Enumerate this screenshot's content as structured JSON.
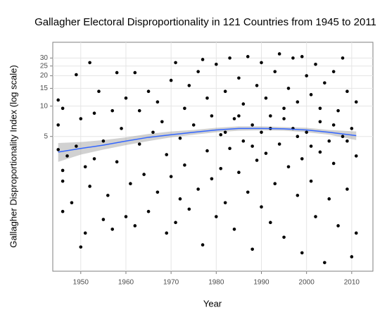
{
  "chart_data": {
    "type": "scatter",
    "title": "Gallagher Electoral Disproportionality in 121 Countries from 1945 to 2011",
    "x_label": "Year",
    "y_label": "Gallagher Disproportionality Index (log scale)",
    "log_y": true,
    "grid": true,
    "xlim": [
      1943.8,
      2014.7
    ],
    "ylim": [
      0.23,
      43
    ],
    "xticks": [
      1950,
      1960,
      1970,
      1980,
      1990,
      2000,
      2010
    ],
    "yticks": [
      5,
      10,
      15,
      20,
      25,
      30
    ],
    "color": "#000000",
    "x": [
      1945,
      1945,
      1945,
      1946,
      1946,
      1946,
      1946,
      1947,
      1948,
      1949,
      1949,
      1950,
      1950,
      1951,
      1951,
      1952,
      1952,
      1953,
      1953,
      1954,
      1955,
      1955,
      1956,
      1957,
      1957,
      1958,
      1958,
      1959,
      1960,
      1960,
      1961,
      1962,
      1962,
      1963,
      1963,
      1964,
      1965,
      1965,
      1966,
      1967,
      1967,
      1968,
      1969,
      1969,
      1970,
      1970,
      1971,
      1971,
      1972,
      1972,
      1973,
      1973,
      1974,
      1974,
      1975,
      1976,
      1976,
      1977,
      1977,
      1978,
      1978,
      1979,
      1979,
      1980,
      1980,
      1981,
      1981,
      1982,
      1982,
      1983,
      1983,
      1984,
      1984,
      1985,
      1985,
      1986,
      1986,
      1987,
      1987,
      1988,
      1988,
      1989,
      1989,
      1990,
      1990,
      1990,
      1991,
      1991,
      1992,
      1992,
      1993,
      1993,
      1994,
      1994,
      1995,
      1995,
      1996,
      1996,
      1997,
      1997,
      1998,
      1998,
      1999,
      1999,
      1999,
      2000,
      2000,
      2001,
      2001,
      2002,
      2002,
      2003,
      2003,
      2004,
      2004,
      2005,
      2005,
      2006,
      2006,
      2007,
      2007,
      2008,
      2008,
      2009,
      2009,
      2010,
      2010,
      2011,
      2011,
      2011,
      1988,
      1992,
      1995,
      1998,
      2001,
      2003,
      2006,
      2009,
      1985,
      1982
    ],
    "values": [
      11.5,
      3.7,
      6.5,
      0.9,
      1.8,
      2.3,
      9.5,
      3.2,
      1.1,
      20.5,
      4.0,
      0.4,
      7.5,
      2.5,
      0.55,
      27,
      1.6,
      3.0,
      8.5,
      14,
      0.75,
      4.5,
      1.3,
      9.0,
      0.6,
      21.5,
      2.8,
      6,
      0.8,
      12,
      1.7,
      21.5,
      0.65,
      4.2,
      9,
      2.1,
      14,
      0.9,
      5.5,
      11,
      1.4,
      7,
      0.55,
      3.3,
      18,
      2.0,
      27,
      0.7,
      4.8,
      1.2,
      9.5,
      2.6,
      16,
      0.95,
      6.5,
      22,
      1.5,
      29,
      0.42,
      3.6,
      12,
      8,
      1.9,
      26,
      0.8,
      5.2,
      2.4,
      14,
      1.1,
      30,
      3.8,
      7.5,
      0.6,
      19,
      2.2,
      4.5,
      10.5,
      31,
      1.4,
      6.5,
      0.38,
      16,
      2.9,
      5.5,
      27,
      1.0,
      12,
      3.4,
      0.7,
      8,
      22,
      1.7,
      33,
      4.2,
      0.5,
      9.5,
      15,
      2.5,
      6,
      30,
      1.3,
      11,
      31,
      3.0,
      0.35,
      20,
      5.5,
      1.8,
      13,
      26,
      0.8,
      7,
      3.5,
      0.28,
      17,
      4.5,
      1.2,
      22,
      2.7,
      9,
      0.65,
      30,
      5,
      1.5,
      14,
      0.32,
      6,
      3.2,
      11,
      0.55,
      4.0,
      6.0,
      7.5,
      5.0,
      4.0,
      9.5,
      6.5,
      4.5,
      8.0,
      5.5
    ],
    "smooth": {
      "color": "#3366ff",
      "band_color": "#999999",
      "x": [
        1945,
        1950,
        1955,
        1960,
        1965,
        1970,
        1975,
        1980,
        1985,
        1990,
        1995,
        2000,
        2005,
        2011
      ],
      "values": [
        3.5,
        3.8,
        4.1,
        4.5,
        4.9,
        5.2,
        5.5,
        5.8,
        6.0,
        6.0,
        5.95,
        5.8,
        5.5,
        5.1
      ],
      "lower": [
        2.8,
        3.3,
        3.7,
        4.1,
        4.5,
        4.9,
        5.2,
        5.5,
        5.7,
        5.75,
        5.7,
        5.5,
        5.2,
        4.6
      ],
      "upper": [
        4.3,
        4.4,
        4.6,
        4.9,
        5.3,
        5.6,
        5.8,
        6.1,
        6.3,
        6.3,
        6.2,
        6.1,
        5.8,
        5.6
      ]
    }
  }
}
